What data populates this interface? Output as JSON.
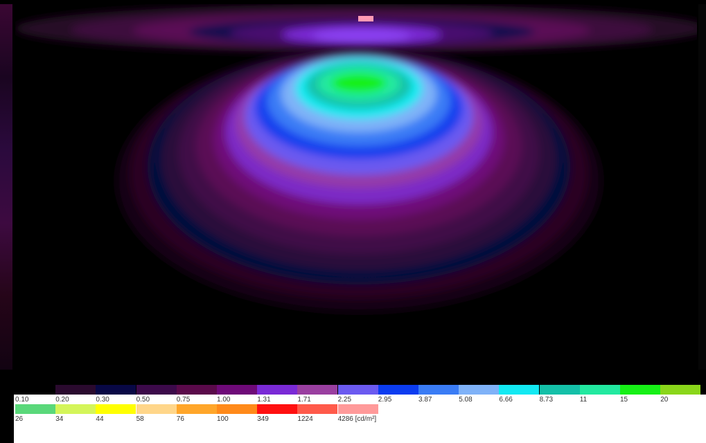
{
  "legend": {
    "row1": [
      {
        "label": "0.10",
        "color": "#000000"
      },
      {
        "label": "0.20",
        "color": "#2a0a2e"
      },
      {
        "label": "0.30",
        "color": "#080845"
      },
      {
        "label": "0.50",
        "color": "#3c0a4a"
      },
      {
        "label": "0.75",
        "color": "#5a0a4a"
      },
      {
        "label": "1.00",
        "color": "#6e0a78"
      },
      {
        "label": "1.31",
        "color": "#7a2ad6"
      },
      {
        "label": "1.71",
        "color": "#9a3fa0"
      },
      {
        "label": "2.25",
        "color": "#6b5af0"
      },
      {
        "label": "2.95",
        "color": "#0b3cf0"
      },
      {
        "label": "3.87",
        "color": "#3a7cf5"
      },
      {
        "label": "5.08",
        "color": "#7fb2f8"
      },
      {
        "label": "6.66",
        "color": "#12e9f2"
      },
      {
        "label": "8.73",
        "color": "#14c0a8"
      },
      {
        "label": "11",
        "color": "#22e9a0"
      },
      {
        "label": "15",
        "color": "#16f016"
      },
      {
        "label": "20",
        "color": "#8ad61a"
      }
    ],
    "row2": [
      {
        "label": "26",
        "color": "#5ad87a"
      },
      {
        "label": "34",
        "color": "#d4f55a"
      },
      {
        "label": "44",
        "color": "#ffff00"
      },
      {
        "label": "58",
        "color": "#ffd68a"
      },
      {
        "label": "76",
        "color": "#ffa62a"
      },
      {
        "label": "100",
        "color": "#ff8a1a"
      },
      {
        "label": "349",
        "color": "#ff1010"
      },
      {
        "label": "1224",
        "color": "#ff5a4a"
      },
      {
        "label": "4286 [cd/m²]",
        "color": "#ff9a9a"
      }
    ]
  }
}
